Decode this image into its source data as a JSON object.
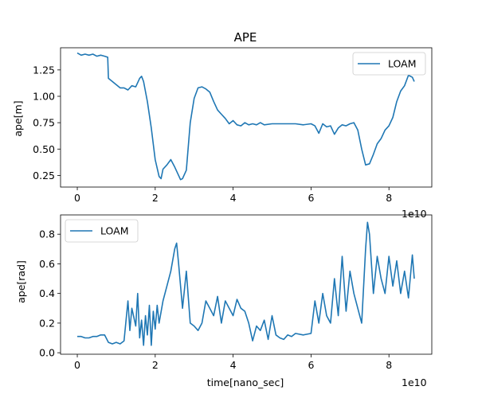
{
  "chart_data": [
    {
      "type": "line",
      "title": "APE",
      "xlabel": "",
      "ylabel": "ape[m]",
      "x_offset_label": "1e10",
      "xlim": [
        -0.43,
        9.1
      ],
      "ylim": [
        0.14,
        1.46
      ],
      "xticks": [
        0,
        2,
        4,
        6,
        8
      ],
      "yticks": [
        0.25,
        0.5,
        0.75,
        1.0,
        1.25
      ],
      "ytick_labels": [
        "0.25",
        "0.50",
        "0.75",
        "1.00",
        "1.25"
      ],
      "legend": "top-right",
      "grid": false,
      "series": [
        {
          "name": "LOAM",
          "color": "#1f77b4",
          "x": [
            0,
            0.1,
            0.2,
            0.3,
            0.4,
            0.5,
            0.6,
            0.7,
            0.78,
            0.8,
            0.9,
            1.0,
            1.1,
            1.2,
            1.3,
            1.4,
            1.5,
            1.6,
            1.65,
            1.7,
            1.8,
            1.9,
            2.0,
            2.1,
            2.15,
            2.2,
            2.3,
            2.4,
            2.5,
            2.6,
            2.65,
            2.7,
            2.8,
            2.9,
            3.0,
            3.1,
            3.2,
            3.3,
            3.4,
            3.5,
            3.6,
            3.7,
            3.8,
            3.9,
            4.0,
            4.1,
            4.2,
            4.3,
            4.4,
            4.5,
            4.6,
            4.7,
            4.8,
            5.0,
            5.2,
            5.4,
            5.6,
            5.8,
            6.0,
            6.1,
            6.2,
            6.3,
            6.4,
            6.5,
            6.6,
            6.7,
            6.8,
            6.9,
            7.0,
            7.1,
            7.2,
            7.3,
            7.4,
            7.5,
            7.6,
            7.7,
            7.8,
            7.9,
            8.0,
            8.1,
            8.2,
            8.3,
            8.4,
            8.5,
            8.6,
            8.65
          ],
          "values": [
            1.41,
            1.39,
            1.4,
            1.39,
            1.4,
            1.38,
            1.39,
            1.38,
            1.37,
            1.17,
            1.14,
            1.11,
            1.08,
            1.08,
            1.06,
            1.1,
            1.09,
            1.17,
            1.19,
            1.14,
            0.95,
            0.7,
            0.4,
            0.24,
            0.22,
            0.31,
            0.35,
            0.4,
            0.33,
            0.25,
            0.21,
            0.22,
            0.3,
            0.75,
            0.98,
            1.08,
            1.09,
            1.07,
            1.04,
            0.95,
            0.87,
            0.83,
            0.79,
            0.74,
            0.77,
            0.73,
            0.72,
            0.75,
            0.73,
            0.74,
            0.73,
            0.75,
            0.73,
            0.74,
            0.74,
            0.74,
            0.74,
            0.73,
            0.74,
            0.72,
            0.65,
            0.74,
            0.71,
            0.72,
            0.64,
            0.7,
            0.73,
            0.72,
            0.74,
            0.75,
            0.68,
            0.5,
            0.35,
            0.36,
            0.45,
            0.55,
            0.6,
            0.68,
            0.72,
            0.8,
            0.95,
            1.05,
            1.1,
            1.2,
            1.18,
            1.14
          ]
        }
      ]
    },
    {
      "type": "line",
      "title": "",
      "xlabel": "time[nano_sec]",
      "ylabel": "ape[rad]",
      "x_offset_label": "1e10",
      "xlim": [
        -0.43,
        9.1
      ],
      "ylim": [
        -0.01,
        0.93
      ],
      "xticks": [
        0,
        2,
        4,
        6,
        8
      ],
      "yticks": [
        0.0,
        0.2,
        0.4,
        0.6,
        0.8
      ],
      "ytick_labels": [
        "0.0",
        "0.2",
        "0.4",
        "0.6",
        "0.8"
      ],
      "legend": "top-left",
      "grid": false,
      "series": [
        {
          "name": "LOAM",
          "color": "#1f77b4",
          "x": [
            0,
            0.1,
            0.2,
            0.3,
            0.4,
            0.5,
            0.6,
            0.7,
            0.8,
            0.9,
            1.0,
            1.1,
            1.2,
            1.3,
            1.35,
            1.4,
            1.5,
            1.55,
            1.6,
            1.65,
            1.7,
            1.75,
            1.8,
            1.85,
            1.9,
            1.95,
            2.0,
            2.05,
            2.1,
            2.2,
            2.3,
            2.4,
            2.5,
            2.55,
            2.6,
            2.7,
            2.8,
            2.9,
            3.0,
            3.1,
            3.2,
            3.3,
            3.4,
            3.5,
            3.6,
            3.7,
            3.8,
            3.9,
            4.0,
            4.1,
            4.2,
            4.3,
            4.4,
            4.5,
            4.6,
            4.7,
            4.8,
            4.9,
            5.0,
            5.1,
            5.2,
            5.3,
            5.4,
            5.5,
            5.6,
            5.8,
            6.0,
            6.1,
            6.2,
            6.3,
            6.4,
            6.5,
            6.6,
            6.7,
            6.8,
            6.9,
            7.0,
            7.1,
            7.2,
            7.3,
            7.4,
            7.45,
            7.5,
            7.6,
            7.7,
            7.8,
            7.9,
            8.0,
            8.1,
            8.2,
            8.3,
            8.4,
            8.5,
            8.6,
            8.65
          ],
          "values": [
            0.11,
            0.11,
            0.1,
            0.1,
            0.11,
            0.11,
            0.12,
            0.12,
            0.07,
            0.06,
            0.07,
            0.06,
            0.08,
            0.35,
            0.15,
            0.3,
            0.18,
            0.4,
            0.1,
            0.22,
            0.05,
            0.25,
            0.12,
            0.32,
            0.05,
            0.28,
            0.16,
            0.32,
            0.2,
            0.35,
            0.45,
            0.55,
            0.7,
            0.74,
            0.6,
            0.3,
            0.55,
            0.2,
            0.18,
            0.15,
            0.2,
            0.35,
            0.3,
            0.25,
            0.38,
            0.2,
            0.35,
            0.3,
            0.25,
            0.36,
            0.3,
            0.28,
            0.2,
            0.08,
            0.18,
            0.15,
            0.22,
            0.09,
            0.25,
            0.12,
            0.1,
            0.09,
            0.12,
            0.11,
            0.13,
            0.12,
            0.13,
            0.35,
            0.2,
            0.4,
            0.25,
            0.2,
            0.5,
            0.25,
            0.65,
            0.28,
            0.55,
            0.4,
            0.3,
            0.2,
            0.7,
            0.88,
            0.8,
            0.4,
            0.65,
            0.5,
            0.4,
            0.65,
            0.45,
            0.62,
            0.4,
            0.55,
            0.37,
            0.66,
            0.5
          ]
        }
      ]
    }
  ]
}
